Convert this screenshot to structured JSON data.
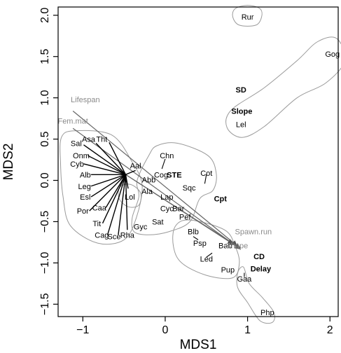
{
  "chart_data": {
    "type": "scatter",
    "xlabel": "MDS1",
    "ylabel": "MDS2",
    "xlim": [
      -1.3,
      2.1
    ],
    "ylim": [
      -1.65,
      2.1
    ],
    "x_ticks": [
      -1,
      0,
      1,
      2
    ],
    "y_ticks": [
      -1.5,
      -1.0,
      -0.5,
      0.0,
      0.5,
      1.0,
      1.5,
      2.0
    ],
    "x_tick_labels": [
      "−1",
      "0",
      "1",
      "2"
    ],
    "y_tick_labels": [
      "−1.5",
      "−1.0",
      "−0.5",
      "0.0",
      "0.5",
      "1.0",
      "1.5",
      "2.0"
    ],
    "grid": false,
    "colors": {
      "ink": "#000000",
      "hull": "#9a9a9a",
      "vector_label": "#8a8a8a"
    },
    "points": [
      {
        "label": "Rur",
        "x": 1.0,
        "y": 1.98
      },
      {
        "label": "Gog",
        "x": 2.03,
        "y": 1.53
      },
      {
        "label": "Lel",
        "x": 0.92,
        "y": 0.68
      },
      {
        "label": "Sal",
        "x": -1.08,
        "y": 0.45
      },
      {
        "label": "Asa",
        "x": -0.93,
        "y": 0.5
      },
      {
        "label": "Tht",
        "x": -0.77,
        "y": 0.5
      },
      {
        "label": "Onm",
        "x": -1.02,
        "y": 0.3
      },
      {
        "label": "Cyb",
        "x": -1.07,
        "y": 0.2
      },
      {
        "label": "Alb",
        "x": -0.97,
        "y": 0.07
      },
      {
        "label": "Leg",
        "x": -0.98,
        "y": -0.07
      },
      {
        "label": "Esl",
        "x": -0.97,
        "y": -0.2
      },
      {
        "label": "Por",
        "x": -1.0,
        "y": -0.37
      },
      {
        "label": "Caa",
        "x": -0.8,
        "y": -0.33
      },
      {
        "label": "Tit",
        "x": -0.83,
        "y": -0.52
      },
      {
        "label": "Cag",
        "x": -0.77,
        "y": -0.66
      },
      {
        "label": "Sce",
        "x": -0.62,
        "y": -0.68
      },
      {
        "label": "Rha",
        "x": -0.46,
        "y": -0.66
      },
      {
        "label": "Lol",
        "x": -0.43,
        "y": -0.2
      },
      {
        "label": "Aal",
        "x": -0.36,
        "y": 0.18
      },
      {
        "label": "Chn",
        "x": 0.02,
        "y": 0.3
      },
      {
        "label": "Cog",
        "x": -0.05,
        "y": 0.07
      },
      {
        "label": "Abb",
        "x": -0.2,
        "y": 0.01
      },
      {
        "label": "Ala",
        "x": -0.22,
        "y": -0.13
      },
      {
        "label": "Lap",
        "x": 0.02,
        "y": -0.2
      },
      {
        "label": "Cyc",
        "x": 0.02,
        "y": -0.34
      },
      {
        "label": "Bar",
        "x": 0.16,
        "y": -0.34
      },
      {
        "label": "Pef",
        "x": 0.24,
        "y": -0.44
      },
      {
        "label": "Sat",
        "x": -0.09,
        "y": -0.5
      },
      {
        "label": "Gyc",
        "x": -0.3,
        "y": -0.56
      },
      {
        "label": "Sqc",
        "x": 0.29,
        "y": -0.09
      },
      {
        "label": "Cot",
        "x": 0.5,
        "y": 0.09
      },
      {
        "label": "Blb",
        "x": 0.34,
        "y": -0.62
      },
      {
        "label": "Psp",
        "x": 0.42,
        "y": -0.76
      },
      {
        "label": "Led",
        "x": 0.5,
        "y": -0.95
      },
      {
        "label": "Pup",
        "x": 0.76,
        "y": -1.08
      },
      {
        "label": "Bab",
        "x": 0.73,
        "y": -0.79
      },
      {
        "label": "Gaa",
        "x": 0.96,
        "y": -1.19
      },
      {
        "label": "Php",
        "x": 1.24,
        "y": -1.6
      }
    ],
    "groups": [
      {
        "label": "SD",
        "x": 0.92,
        "y": 1.1
      },
      {
        "label": "Slope",
        "x": 0.93,
        "y": 0.84
      },
      {
        "label": "STE",
        "x": 0.11,
        "y": 0.07
      },
      {
        "label": "Cpt",
        "x": 0.67,
        "y": -0.22
      },
      {
        "label": "CD",
        "x": 1.14,
        "y": -0.92
      },
      {
        "label": "Delay",
        "x": 1.16,
        "y": -1.07
      }
    ],
    "vectors": [
      {
        "label": "Lifespan",
        "x": -0.97,
        "y": 0.98
      },
      {
        "label": "Fem.mat",
        "x": -1.12,
        "y": 0.72
      },
      {
        "label": "Spawn.run",
        "x": 1.07,
        "y": -0.62
      },
      {
        "label": "Shape",
        "x": 0.87,
        "y": -0.79
      }
    ]
  }
}
